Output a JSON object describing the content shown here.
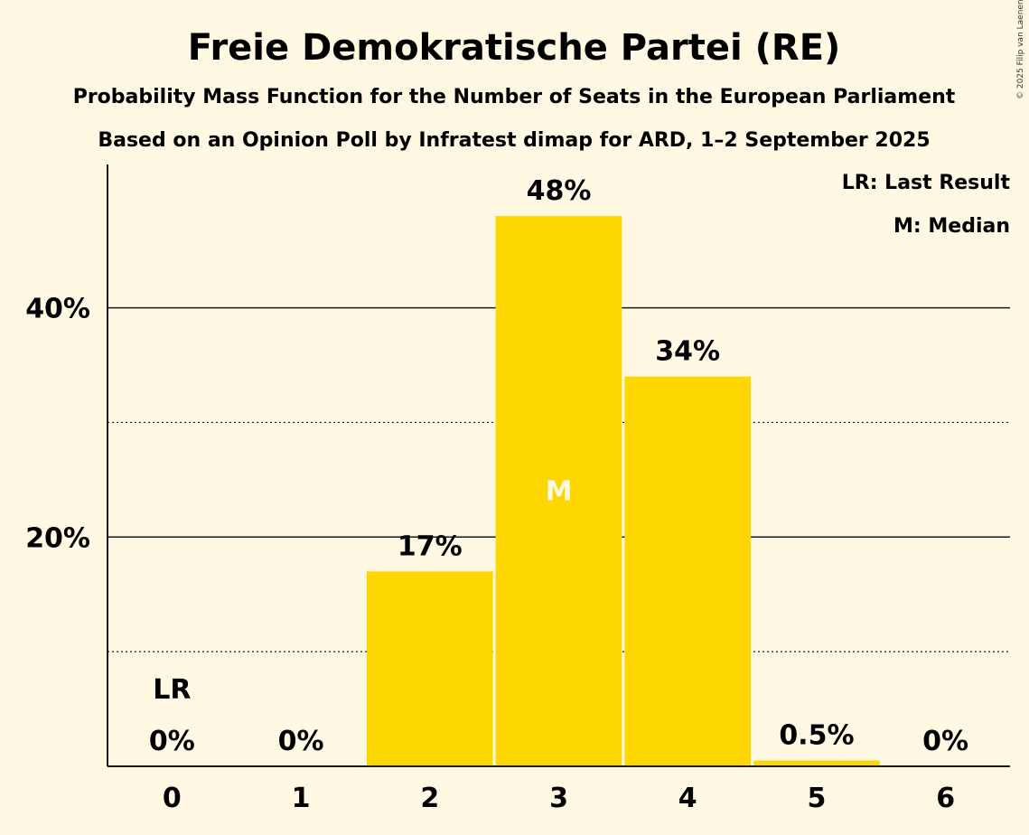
{
  "chart_data": {
    "type": "bar",
    "title": "Freie Demokratische Partei (RE)",
    "subtitle": "Probability Mass Function for the Number of Seats in the European Parliament",
    "subtitle2": "Based on an Opinion Poll by Infratest dimap for ARD, 1–2 September 2025",
    "categories": [
      "0",
      "1",
      "2",
      "3",
      "4",
      "5",
      "6"
    ],
    "values": [
      0,
      0,
      17,
      48,
      34,
      0.5,
      0
    ],
    "value_labels": [
      "0%",
      "0%",
      "17%",
      "48%",
      "34%",
      "0.5%",
      "0%"
    ],
    "ylim": [
      0,
      52.5
    ],
    "yticks": [
      {
        "value": 20,
        "label": "20%"
      },
      {
        "value": 40,
        "label": "40%"
      }
    ],
    "minor_gridlines": [
      10,
      30
    ],
    "last_result_index": 0,
    "last_result_marker": "LR",
    "median_index": 3,
    "median_marker": "M",
    "legend": [
      "LR: Last Result",
      "M: Median"
    ],
    "legend_position": "top-right",
    "bar_color": "#FFD700",
    "background": "#FFF8E3",
    "copyright": "© 2025 Filip van Laenen"
  }
}
